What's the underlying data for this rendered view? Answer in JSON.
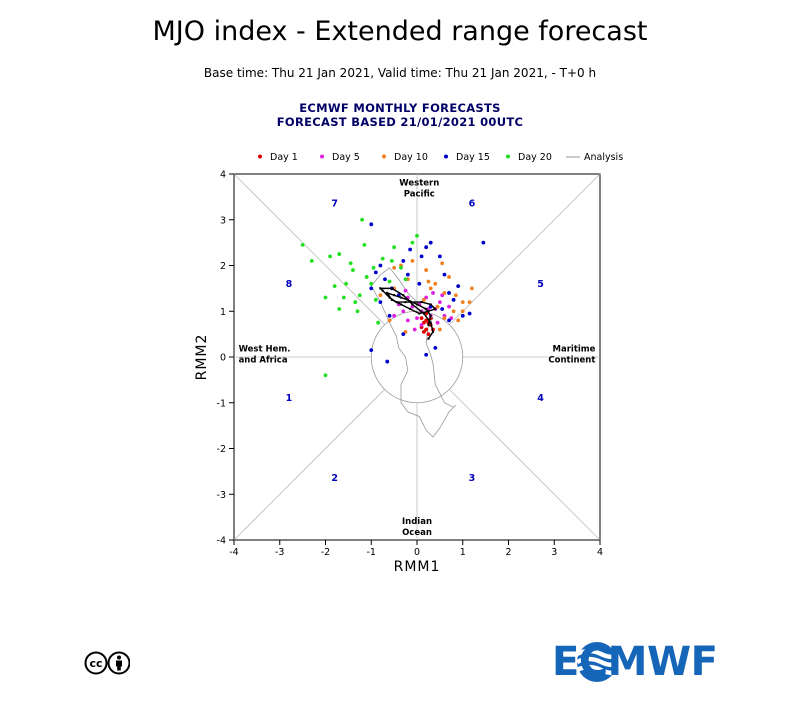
{
  "page": {
    "title": "MJO index - Extended range forecast",
    "subtitle": "Base time: Thu 21 Jan 2021, Valid time: Thu 21 Jan 2021, - T+0 h",
    "header_line1": "ECMWF MONTHLY FORECASTS",
    "header_line2": "FORECAST  BASED 21/01/2021 00UTC",
    "logo_text": "ECMWF"
  },
  "chart_data": {
    "type": "scatter",
    "xlabel": "RMM1",
    "ylabel": "RMM2",
    "xlim": [
      -4,
      4
    ],
    "ylim": [
      -4,
      4
    ],
    "xticks": [
      -4,
      -3,
      -2,
      -1,
      0,
      1,
      2,
      3,
      4
    ],
    "yticks": [
      -4,
      -3,
      -2,
      -1,
      0,
      1,
      2,
      3,
      4
    ],
    "legend_position": "top",
    "phase_labels": [
      {
        "label": "1",
        "x": -2.8,
        "y": -0.9
      },
      {
        "label": "2",
        "x": -1.8,
        "y": -2.65
      },
      {
        "label": "3",
        "x": 1.2,
        "y": -2.65
      },
      {
        "label": "4",
        "x": 2.7,
        "y": -0.9
      },
      {
        "label": "5",
        "x": 2.7,
        "y": 1.6
      },
      {
        "label": "6",
        "x": 1.2,
        "y": 3.35
      },
      {
        "label": "7",
        "x": -1.8,
        "y": 3.35
      },
      {
        "label": "8",
        "x": -2.8,
        "y": 1.6
      }
    ],
    "region_labels": [
      {
        "lines": [
          "Western",
          "Pacific"
        ],
        "x": 0.05,
        "y": 3.75,
        "anchor": "middle"
      },
      {
        "lines": [
          "Indian",
          "Ocean"
        ],
        "x": 0.0,
        "y": -3.65,
        "anchor": "middle"
      },
      {
        "lines": [
          "West Hem.",
          "and Africa"
        ],
        "x": -3.9,
        "y": 0.12,
        "anchor": "start"
      },
      {
        "lines": [
          "Maritime",
          "Continent"
        ],
        "x": 3.9,
        "y": 0.12,
        "anchor": "end"
      }
    ],
    "series": [
      {
        "name": "Day 1",
        "color": "#e00000",
        "points": [
          [
            0.2,
            0.6
          ],
          [
            0.25,
            0.75
          ],
          [
            0.15,
            0.55
          ],
          [
            0.3,
            0.7
          ],
          [
            0.2,
            0.8
          ],
          [
            0.1,
            0.65
          ],
          [
            0.35,
            0.6
          ],
          [
            0.25,
            0.5
          ],
          [
            0.15,
            0.75
          ],
          [
            0.3,
            0.85
          ],
          [
            0.2,
            0.95
          ],
          [
            0.1,
            0.85
          ]
        ]
      },
      {
        "name": "Day 5",
        "color": "#e020e0",
        "points": [
          [
            0.1,
            1.0
          ],
          [
            -0.1,
            1.1
          ],
          [
            0.3,
            0.9
          ],
          [
            0.5,
            1.2
          ],
          [
            -0.2,
            0.8
          ],
          [
            0.0,
            0.85
          ],
          [
            0.4,
            1.05
          ],
          [
            0.6,
            0.9
          ],
          [
            -0.3,
            1.0
          ],
          [
            0.2,
            1.3
          ],
          [
            -0.4,
            1.15
          ],
          [
            0.7,
            1.1
          ],
          [
            0.1,
            0.7
          ],
          [
            -0.2,
            1.3
          ],
          [
            0.35,
            1.4
          ],
          [
            -0.5,
            0.9
          ],
          [
            0.75,
            0.85
          ],
          [
            0.05,
            1.15
          ],
          [
            0.55,
            1.35
          ],
          [
            -0.05,
            0.6
          ],
          [
            0.25,
            1.05
          ],
          [
            -0.25,
            1.45
          ],
          [
            0.45,
            0.75
          ]
        ]
      },
      {
        "name": "Day 10",
        "color": "#f08020",
        "points": [
          [
            0.6,
            1.4
          ],
          [
            0.8,
            1.0
          ],
          [
            0.4,
            1.6
          ],
          [
            1.0,
            1.2
          ],
          [
            -0.2,
            1.7
          ],
          [
            0.2,
            1.9
          ],
          [
            0.9,
            0.8
          ],
          [
            -0.5,
            1.5
          ],
          [
            0.5,
            0.6
          ],
          [
            1.2,
            1.5
          ],
          [
            -0.6,
            0.8
          ],
          [
            0.3,
            1.5
          ],
          [
            0.7,
            1.75
          ],
          [
            -0.1,
            2.1
          ],
          [
            1.15,
            1.2
          ],
          [
            0.55,
            2.05
          ],
          [
            -0.35,
            2.0
          ],
          [
            0.15,
            1.25
          ],
          [
            0.85,
            1.35
          ],
          [
            -0.8,
            1.35
          ],
          [
            1.0,
            1.0
          ],
          [
            0.6,
            0.85
          ],
          [
            -0.25,
            0.55
          ],
          [
            0.45,
            1.1
          ],
          [
            -0.5,
            1.95
          ],
          [
            0.25,
            1.65
          ]
        ]
      },
      {
        "name": "Day 15",
        "color": "#0000cc",
        "points": [
          [
            -1.0,
            2.9
          ],
          [
            0.3,
            2.5
          ],
          [
            1.45,
            2.5
          ],
          [
            -0.3,
            2.1
          ],
          [
            0.5,
            2.2
          ],
          [
            -0.8,
            1.2
          ],
          [
            0.7,
            1.4
          ],
          [
            1.0,
            0.9
          ],
          [
            -1.0,
            0.15
          ],
          [
            0.2,
            0.05
          ],
          [
            -0.6,
            0.9
          ],
          [
            0.9,
            1.55
          ],
          [
            -0.2,
            1.8
          ],
          [
            0.1,
            2.2
          ],
          [
            -0.7,
            1.7
          ],
          [
            0.6,
            1.8
          ],
          [
            -1.0,
            1.5
          ],
          [
            0.4,
            0.2
          ],
          [
            -0.8,
            2.0
          ],
          [
            0.3,
            1.1
          ],
          [
            -0.4,
            1.35
          ],
          [
            0.8,
            1.25
          ],
          [
            0.05,
            1.6
          ],
          [
            -0.15,
            2.35
          ],
          [
            0.55,
            1.05
          ],
          [
            -0.55,
            1.5
          ],
          [
            1.15,
            0.95
          ],
          [
            -0.3,
            0.5
          ],
          [
            -0.65,
            -0.1
          ],
          [
            0.7,
            0.8
          ],
          [
            0.2,
            2.4
          ],
          [
            -0.9,
            1.85
          ]
        ]
      },
      {
        "name": "Day 20",
        "color": "#20e020",
        "points": [
          [
            -2.5,
            2.45
          ],
          [
            -1.2,
            3.0
          ],
          [
            -1.9,
            2.2
          ],
          [
            -2.0,
            1.3
          ],
          [
            -1.6,
            1.3
          ],
          [
            -1.7,
            2.25
          ],
          [
            -1.4,
            1.9
          ],
          [
            -1.0,
            1.6
          ],
          [
            -0.5,
            2.4
          ],
          [
            -0.1,
            2.5
          ],
          [
            0.0,
            2.65
          ],
          [
            -1.3,
            1.0
          ],
          [
            -0.9,
            1.25
          ],
          [
            -0.6,
            1.65
          ],
          [
            -2.0,
            -0.4
          ],
          [
            -2.3,
            2.1
          ],
          [
            -1.55,
            1.6
          ],
          [
            -1.1,
            1.75
          ],
          [
            -0.75,
            2.15
          ],
          [
            -1.25,
            1.35
          ],
          [
            -0.35,
            1.95
          ],
          [
            -1.7,
            1.05
          ],
          [
            -0.85,
            0.75
          ],
          [
            -1.45,
            2.05
          ],
          [
            -1.15,
            2.45
          ],
          [
            -0.55,
            2.1
          ],
          [
            -1.8,
            1.55
          ],
          [
            -0.95,
            1.95
          ],
          [
            -1.35,
            1.2
          ],
          [
            -0.25,
            1.7
          ]
        ]
      },
      {
        "name": "Analysis",
        "color": "#999999",
        "line": [
          [
            0.85,
            -1.05
          ],
          [
            0.7,
            -1.2
          ],
          [
            0.5,
            -1.55
          ],
          [
            0.35,
            -1.75
          ],
          [
            0.2,
            -1.6
          ],
          [
            0.05,
            -1.3
          ],
          [
            -0.2,
            -1.2
          ],
          [
            -0.35,
            -1.0
          ],
          [
            -0.35,
            -0.6
          ],
          [
            -0.2,
            -0.3
          ],
          [
            -0.25,
            0.0
          ],
          [
            -0.4,
            0.2
          ],
          [
            -0.45,
            0.45
          ],
          [
            -0.6,
            0.75
          ],
          [
            -0.8,
            1.2
          ],
          [
            -1.0,
            1.55
          ],
          [
            -0.8,
            1.8
          ],
          [
            -0.6,
            1.95
          ],
          [
            -0.4,
            1.7
          ],
          [
            -0.2,
            1.4
          ],
          [
            0.0,
            1.2
          ],
          [
            0.2,
            1.0
          ],
          [
            0.35,
            0.85
          ],
          [
            0.25,
            0.7
          ],
          [
            0.2,
            0.3
          ],
          [
            0.3,
            0.05
          ],
          [
            0.35,
            -0.15
          ],
          [
            0.4,
            -0.6
          ],
          [
            0.6,
            -1.0
          ],
          [
            0.8,
            -1.1
          ]
        ]
      }
    ],
    "ensemble_mean": {
      "name": "",
      "color": "#000000",
      "line": [
        [
          0.25,
          0.7
        ],
        [
          0.3,
          0.9
        ],
        [
          0.2,
          1.05
        ],
        [
          0.0,
          1.15
        ],
        [
          -0.2,
          1.25
        ],
        [
          -0.35,
          1.3
        ],
        [
          -0.5,
          1.35
        ],
        [
          -0.65,
          1.4
        ],
        [
          -0.55,
          1.25
        ],
        [
          -0.35,
          1.15
        ],
        [
          -0.15,
          1.05
        ],
        [
          0.05,
          0.95
        ],
        [
          0.25,
          1.0
        ],
        [
          0.4,
          1.05
        ],
        [
          0.3,
          1.15
        ],
        [
          0.1,
          1.2
        ],
        [
          -0.25,
          1.2
        ],
        [
          -0.45,
          1.2
        ],
        [
          -0.6,
          1.3
        ],
        [
          -0.75,
          1.45
        ],
        [
          -0.8,
          1.5
        ],
        [
          -0.55,
          1.5
        ],
        [
          -0.3,
          1.35
        ],
        [
          -0.1,
          1.15
        ],
        [
          0.15,
          0.95
        ],
        [
          0.3,
          0.75
        ],
        [
          0.35,
          0.55
        ],
        [
          0.25,
          0.4
        ]
      ]
    }
  }
}
